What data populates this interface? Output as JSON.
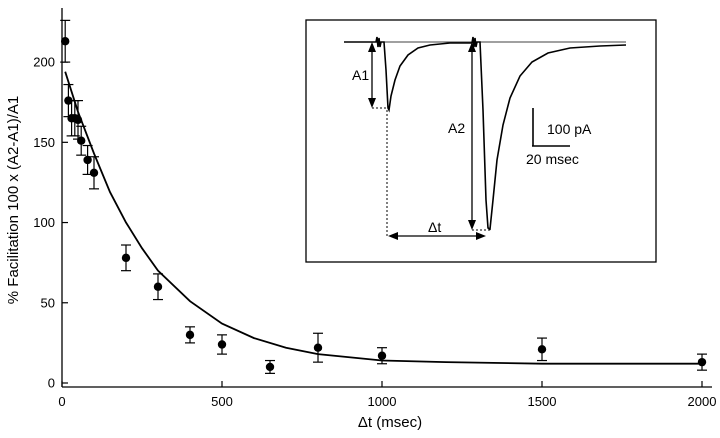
{
  "chart_data": {
    "type": "scatter",
    "xlabel": "Δt  (msec)",
    "ylabel": "% Facilitation  100 x (A2-A1)/A1",
    "xlim": [
      0,
      2000
    ],
    "ylim": [
      0,
      220
    ],
    "xticks": [
      0,
      500,
      1000,
      1500,
      2000
    ],
    "yticks": [
      0,
      50,
      100,
      150,
      200
    ],
    "grid": false,
    "series": [
      {
        "marker": "filled-circle",
        "points": [
          {
            "x": 10,
            "y": 213,
            "err": 13
          },
          {
            "x": 20,
            "y": 176,
            "err": 10
          },
          {
            "x": 30,
            "y": 165,
            "err": 11
          },
          {
            "x": 40,
            "y": 165,
            "err": 11
          },
          {
            "x": 50,
            "y": 164,
            "err": 12
          },
          {
            "x": 60,
            "y": 151,
            "err": 9
          },
          {
            "x": 80,
            "y": 139,
            "err": 9
          },
          {
            "x": 100,
            "y": 131,
            "err": 10
          },
          {
            "x": 200,
            "y": 78,
            "err": 8
          },
          {
            "x": 300,
            "y": 60,
            "err": 8
          },
          {
            "x": 400,
            "y": 30,
            "err": 5
          },
          {
            "x": 500,
            "y": 24,
            "err": 6
          },
          {
            "x": 650,
            "y": 10,
            "err": 4
          },
          {
            "x": 800,
            "y": 22,
            "err": 9
          },
          {
            "x": 1000,
            "y": 17,
            "err": 5
          },
          {
            "x": 1500,
            "y": 21,
            "err": 7
          },
          {
            "x": 2000,
            "y": 13,
            "err": 5
          }
        ]
      }
    ],
    "fit": {
      "type": "exponential",
      "curve": [
        {
          "x": 10,
          "y": 194
        },
        {
          "x": 50,
          "y": 169
        },
        {
          "x": 100,
          "y": 143
        },
        {
          "x": 150,
          "y": 119
        },
        {
          "x": 200,
          "y": 100
        },
        {
          "x": 250,
          "y": 84
        },
        {
          "x": 300,
          "y": 70
        },
        {
          "x": 400,
          "y": 51
        },
        {
          "x": 500,
          "y": 37
        },
        {
          "x": 600,
          "y": 28
        },
        {
          "x": 700,
          "y": 22
        },
        {
          "x": 800,
          "y": 18
        },
        {
          "x": 1000,
          "y": 14
        },
        {
          "x": 1200,
          "y": 13
        },
        {
          "x": 1500,
          "y": 12
        },
        {
          "x": 2000,
          "y": 12
        }
      ]
    },
    "inset": {
      "labels": {
        "a1": "A1",
        "a2": "A2",
        "dt": "Δt"
      },
      "scalebar": {
        "current": "100 pA",
        "time": "20 msec"
      }
    }
  }
}
